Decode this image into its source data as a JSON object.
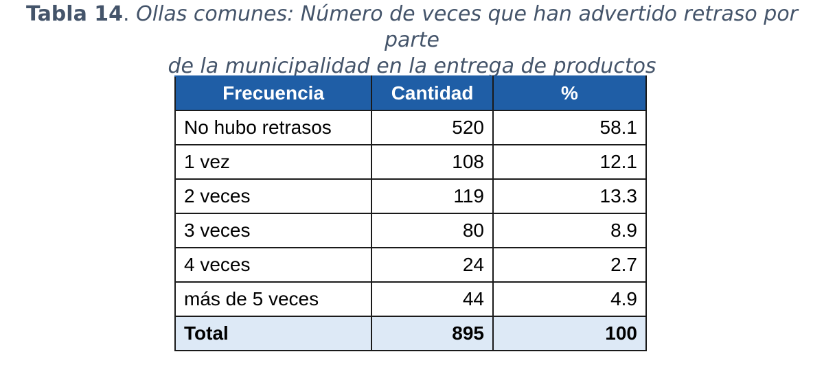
{
  "caption": {
    "label": "Tabla 14",
    "separator": ".",
    "text_line1": " Ollas comunes: Número de veces que han advertido retraso por parte",
    "text_line2": "de la municipalidad en la entrega de productos"
  },
  "table": {
    "headers": [
      "Frecuencia",
      "Cantidad",
      "%"
    ],
    "rows": [
      [
        "No hubo retrasos",
        "520",
        "58.1"
      ],
      [
        "1 vez",
        "108",
        "12.1"
      ],
      [
        "2 veces",
        "119",
        "13.3"
      ],
      [
        "3 veces",
        "80",
        "8.9"
      ],
      [
        "4 veces",
        "24",
        "2.7"
      ],
      [
        "más de 5 veces",
        "44",
        "4.9"
      ]
    ],
    "total": [
      "Total",
      "895",
      "100"
    ]
  },
  "colors": {
    "header_background": "#1f5ea6",
    "header_text": "#ffffff",
    "total_background": "#dde9f6",
    "caption_text": "#44546a"
  }
}
